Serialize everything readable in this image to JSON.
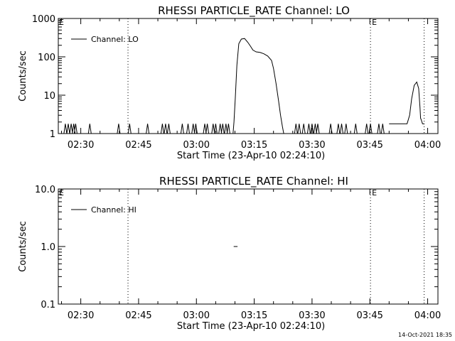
{
  "footer": {
    "timestamp": "14-Oct-2021 18:35"
  },
  "chart_data": [
    {
      "type": "line",
      "title": "RHESSI PARTICLE_RATE Channel: LO",
      "xlabel": "Start Time (23-Apr-10 02:24:10)",
      "ylabel": "Counts/sec",
      "yscale": "log",
      "ylim": [
        1,
        1000
      ],
      "xlim": [
        "02:24:10",
        "04:02:40"
      ],
      "x_ticks": [
        "02:30",
        "02:45",
        "03:00",
        "03:15",
        "03:30",
        "03:45",
        "04:00"
      ],
      "y_ticks": [
        "1",
        "10",
        "100",
        "1000"
      ],
      "legend": {
        "label": "Channel: LO",
        "placement": "top-left"
      },
      "vertical_dotted_lines": [
        "02:42:15",
        "03:45:10",
        "03:59:05"
      ],
      "marker_labels": [
        {
          "text": "E",
          "at": "03:45:10"
        }
      ],
      "series": [
        {
          "name": "Channel: LO",
          "points": [
            [
              "03:09:30",
              1
            ],
            [
              "03:09:45",
              2
            ],
            [
              "03:10:05",
              8
            ],
            [
              "03:10:30",
              60
            ],
            [
              "03:11:00",
              220
            ],
            [
              "03:11:40",
              290
            ],
            [
              "03:12:30",
              300
            ],
            [
              "03:13:20",
              240
            ],
            [
              "03:14:00",
              190
            ],
            [
              "03:14:40",
              150
            ],
            [
              "03:15:30",
              135
            ],
            [
              "03:16:30",
              130
            ],
            [
              "03:17:30",
              120
            ],
            [
              "03:18:30",
              105
            ],
            [
              "03:19:30",
              80
            ],
            [
              "03:20:00",
              50
            ],
            [
              "03:20:40",
              20
            ],
            [
              "03:21:20",
              7
            ],
            [
              "03:21:50",
              3
            ],
            [
              "03:22:20",
              1.5
            ],
            [
              "03:22:40",
              1
            ]
          ],
          "noise_points": [
            [
              "02:26:00",
              1.8
            ],
            [
              "02:26:45",
              1.8
            ],
            [
              "02:27:30",
              1.8
            ],
            [
              "02:28:10",
              1.8
            ],
            [
              "02:28:40",
              1.8
            ],
            [
              "02:32:20",
              1.8
            ],
            [
              "02:39:50",
              1.8
            ],
            [
              "02:42:40",
              1.8
            ],
            [
              "02:47:20",
              1.8
            ],
            [
              "02:51:10",
              1.8
            ],
            [
              "02:52:00",
              1.8
            ],
            [
              "02:52:50",
              1.8
            ],
            [
              "02:56:20",
              1.8
            ],
            [
              "02:57:50",
              1.8
            ],
            [
              "02:59:10",
              1.8
            ],
            [
              "02:59:50",
              1.8
            ],
            [
              "03:02:10",
              1.8
            ],
            [
              "03:02:50",
              1.8
            ],
            [
              "03:04:20",
              1.8
            ],
            [
              "03:05:00",
              1.8
            ],
            [
              "03:06:10",
              1.8
            ],
            [
              "03:06:50",
              1.8
            ],
            [
              "03:07:40",
              1.8
            ],
            [
              "03:08:20",
              1.8
            ],
            [
              "03:25:50",
              1.8
            ],
            [
              "03:26:40",
              1.8
            ],
            [
              "03:27:50",
              1.8
            ],
            [
              "03:29:10",
              1.8
            ],
            [
              "03:30:00",
              1.8
            ],
            [
              "03:30:50",
              1.8
            ],
            [
              "03:31:30",
              1.8
            ],
            [
              "03:34:50",
              1.8
            ],
            [
              "03:36:50",
              1.8
            ],
            [
              "03:37:40",
              1.8
            ],
            [
              "03:38:50",
              1.8
            ],
            [
              "03:41:20",
              1.8
            ],
            [
              "03:44:10",
              1.8
            ],
            [
              "03:45:10",
              1.8
            ],
            [
              "03:47:20",
              1.8
            ],
            [
              "03:48:20",
              1.8
            ]
          ],
          "secondary_peak": [
            [
              "03:50:00",
              1.8
            ],
            [
              "03:54:40",
              1.8
            ],
            [
              "03:55:20",
              3
            ],
            [
              "03:55:50",
              8
            ],
            [
              "03:56:30",
              18
            ],
            [
              "03:57:10",
              22
            ],
            [
              "03:57:40",
              15
            ],
            [
              "03:58:00",
              5
            ],
            [
              "03:58:10",
              2.5
            ],
            [
              "03:58:20",
              2.3
            ],
            [
              "03:58:40",
              1.8
            ],
            [
              "03:59:05",
              1.8
            ]
          ]
        }
      ]
    },
    {
      "type": "line",
      "title": "RHESSI PARTICLE_RATE Channel: HI",
      "xlabel": "Start Time (23-Apr-10 02:24:10)",
      "ylabel": "Counts/sec",
      "yscale": "log",
      "ylim": [
        0.1,
        10
      ],
      "xlim": [
        "02:24:10",
        "04:02:40"
      ],
      "x_ticks": [
        "02:30",
        "02:45",
        "03:00",
        "03:15",
        "03:30",
        "03:45",
        "04:00"
      ],
      "y_ticks": [
        "0.1",
        "1.0",
        "10.0"
      ],
      "legend": {
        "label": "Channel: HI",
        "placement": "top-left"
      },
      "vertical_dotted_lines": [
        "02:42:15",
        "03:45:10",
        "03:59:05"
      ],
      "marker_labels": [
        {
          "text": "E",
          "at": "03:45:10"
        }
      ],
      "series": [
        {
          "name": "Channel: HI",
          "points": [
            [
              "03:09:40",
              1.0
            ],
            [
              "03:10:40",
              1.0
            ]
          ]
        }
      ]
    }
  ]
}
